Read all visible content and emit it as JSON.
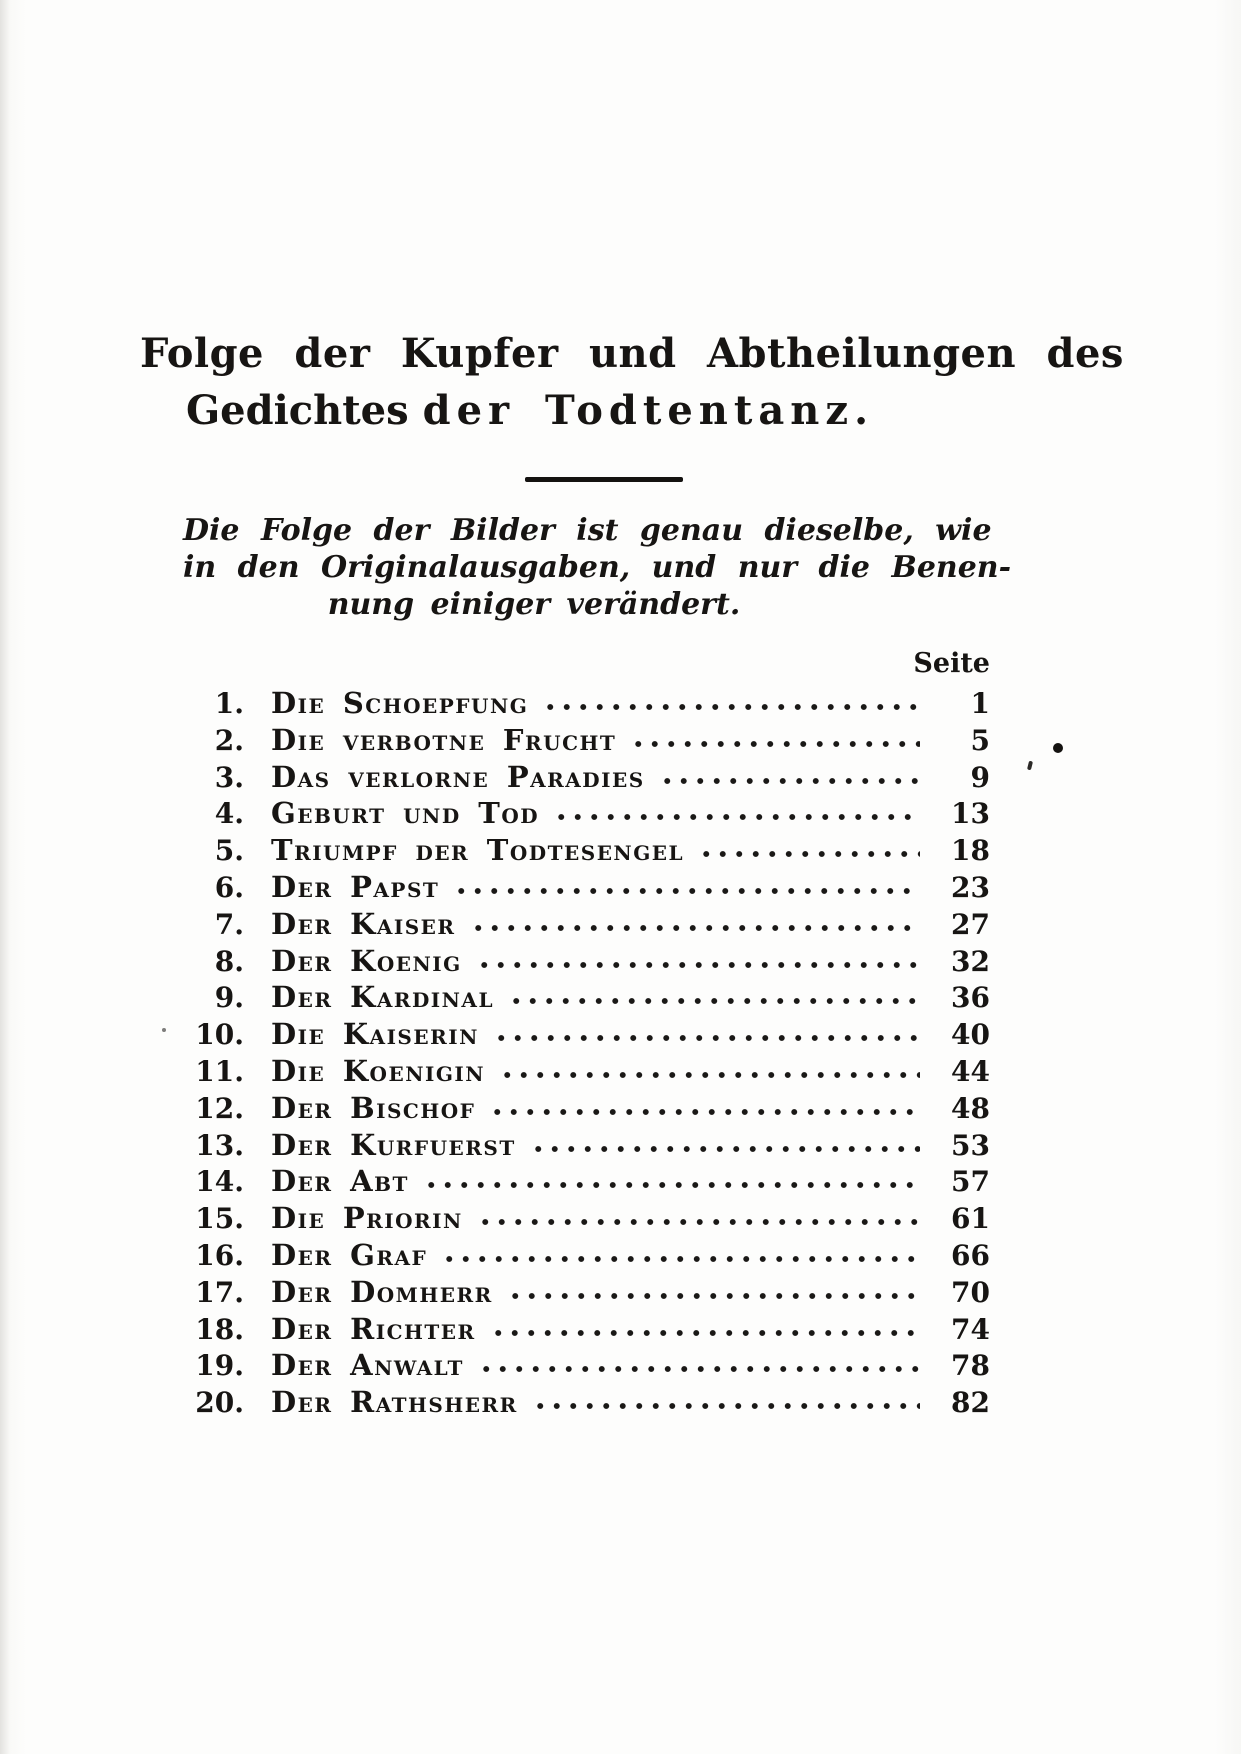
{
  "ink_color": "#171513",
  "paper_color": "#fdfdfc",
  "header": {
    "title_line1": "Folge der Kupfer und Abtheilungen des",
    "title_line2_word1": "Gedichtes",
    "title_line2_rest": "der Todtentanz."
  },
  "intro": {
    "line1": "Die Folge der Bilder ist genau dieselbe, wie",
    "line2": "in den Originalausgaben, und nur die Benen-",
    "line3": "nung einiger verändert."
  },
  "toc": {
    "column_header": "Seite",
    "entries": [
      {
        "num": "1.",
        "title": "Die Schoepfung",
        "page": "1"
      },
      {
        "num": "2.",
        "title": "Die verbotne Frucht",
        "page": "5"
      },
      {
        "num": "3.",
        "title": "Das verlorne Paradies",
        "page": "9"
      },
      {
        "num": "4.",
        "title": "Geburt und Tod",
        "page": "13"
      },
      {
        "num": "5.",
        "title": "Triumpf der Todtesengel",
        "page": "18"
      },
      {
        "num": "6.",
        "title": "Der Papst",
        "page": "23"
      },
      {
        "num": "7.",
        "title": "Der Kaiser",
        "page": "27"
      },
      {
        "num": "8.",
        "title": "Der Koenig",
        "page": "32"
      },
      {
        "num": "9.",
        "title": "Der Kardinal",
        "page": "36"
      },
      {
        "num": "10.",
        "title": "Die Kaiserin",
        "page": "40"
      },
      {
        "num": "11.",
        "title": "Die Koenigin",
        "page": "44"
      },
      {
        "num": "12.",
        "title": "Der Bischof",
        "page": "48"
      },
      {
        "num": "13.",
        "title": "Der Kurfuerst",
        "page": "53"
      },
      {
        "num": "14.",
        "title": "Der Abt",
        "page": "57"
      },
      {
        "num": "15.",
        "title": "Die Priorin",
        "page": "61"
      },
      {
        "num": "16.",
        "title": "Der Graf",
        "page": "66"
      },
      {
        "num": "17.",
        "title": "Der Domherr",
        "page": "70"
      },
      {
        "num": "18.",
        "title": "Der Richter",
        "page": "74"
      },
      {
        "num": "19.",
        "title": "Der Anwalt",
        "page": "78"
      },
      {
        "num": "20.",
        "title": "Der Rathsherr",
        "page": "82"
      }
    ]
  }
}
